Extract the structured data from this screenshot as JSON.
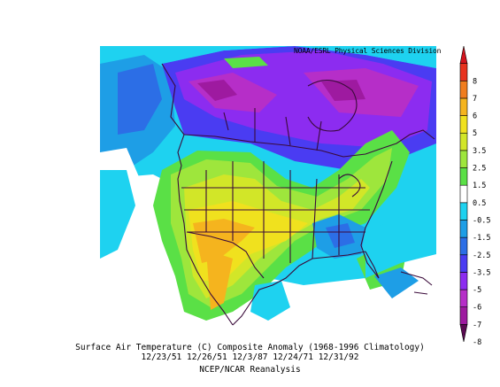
{
  "map": {
    "credit": "NOAA/ESRL Physical Sciences Division"
  },
  "caption": {
    "line1": "Surface Air Temperature (C) Composite Anomaly (1968-1996 Climatology)",
    "line2": "12/23/51 12/26/51 12/3/87 12/24/71 12/31/92",
    "line3": "NCEP/NCAR Reanalysis"
  },
  "colorbar": {
    "levels": [
      {
        "label": "-8",
        "color": "#5a0a52"
      },
      {
        "label": "-7",
        "color": "#9e1aa0"
      },
      {
        "label": "-6",
        "color": "#b62ec8"
      },
      {
        "label": "-5",
        "color": "#8c2cf0"
      },
      {
        "label": "-3.5",
        "color": "#4a3cf2"
      },
      {
        "label": "-2.5",
        "color": "#2c6ee6"
      },
      {
        "label": "-1.5",
        "color": "#1e9ee6"
      },
      {
        "label": "-0.5",
        "color": "#1ed2f0"
      },
      {
        "label": "0.5",
        "color": "#ffffff"
      },
      {
        "label": "1.5",
        "color": "#5ae046"
      },
      {
        "label": "2.5",
        "color": "#9ee63c"
      },
      {
        "label": "3.5",
        "color": "#d2e628"
      },
      {
        "label": "5",
        "color": "#f0e11e"
      },
      {
        "label": "6",
        "color": "#f5b41e"
      },
      {
        "label": "7",
        "color": "#f07d1e"
      },
      {
        "label": "8",
        "color": "#e8321e"
      },
      {
        "label": "",
        "color": "#d2141e"
      }
    ]
  }
}
